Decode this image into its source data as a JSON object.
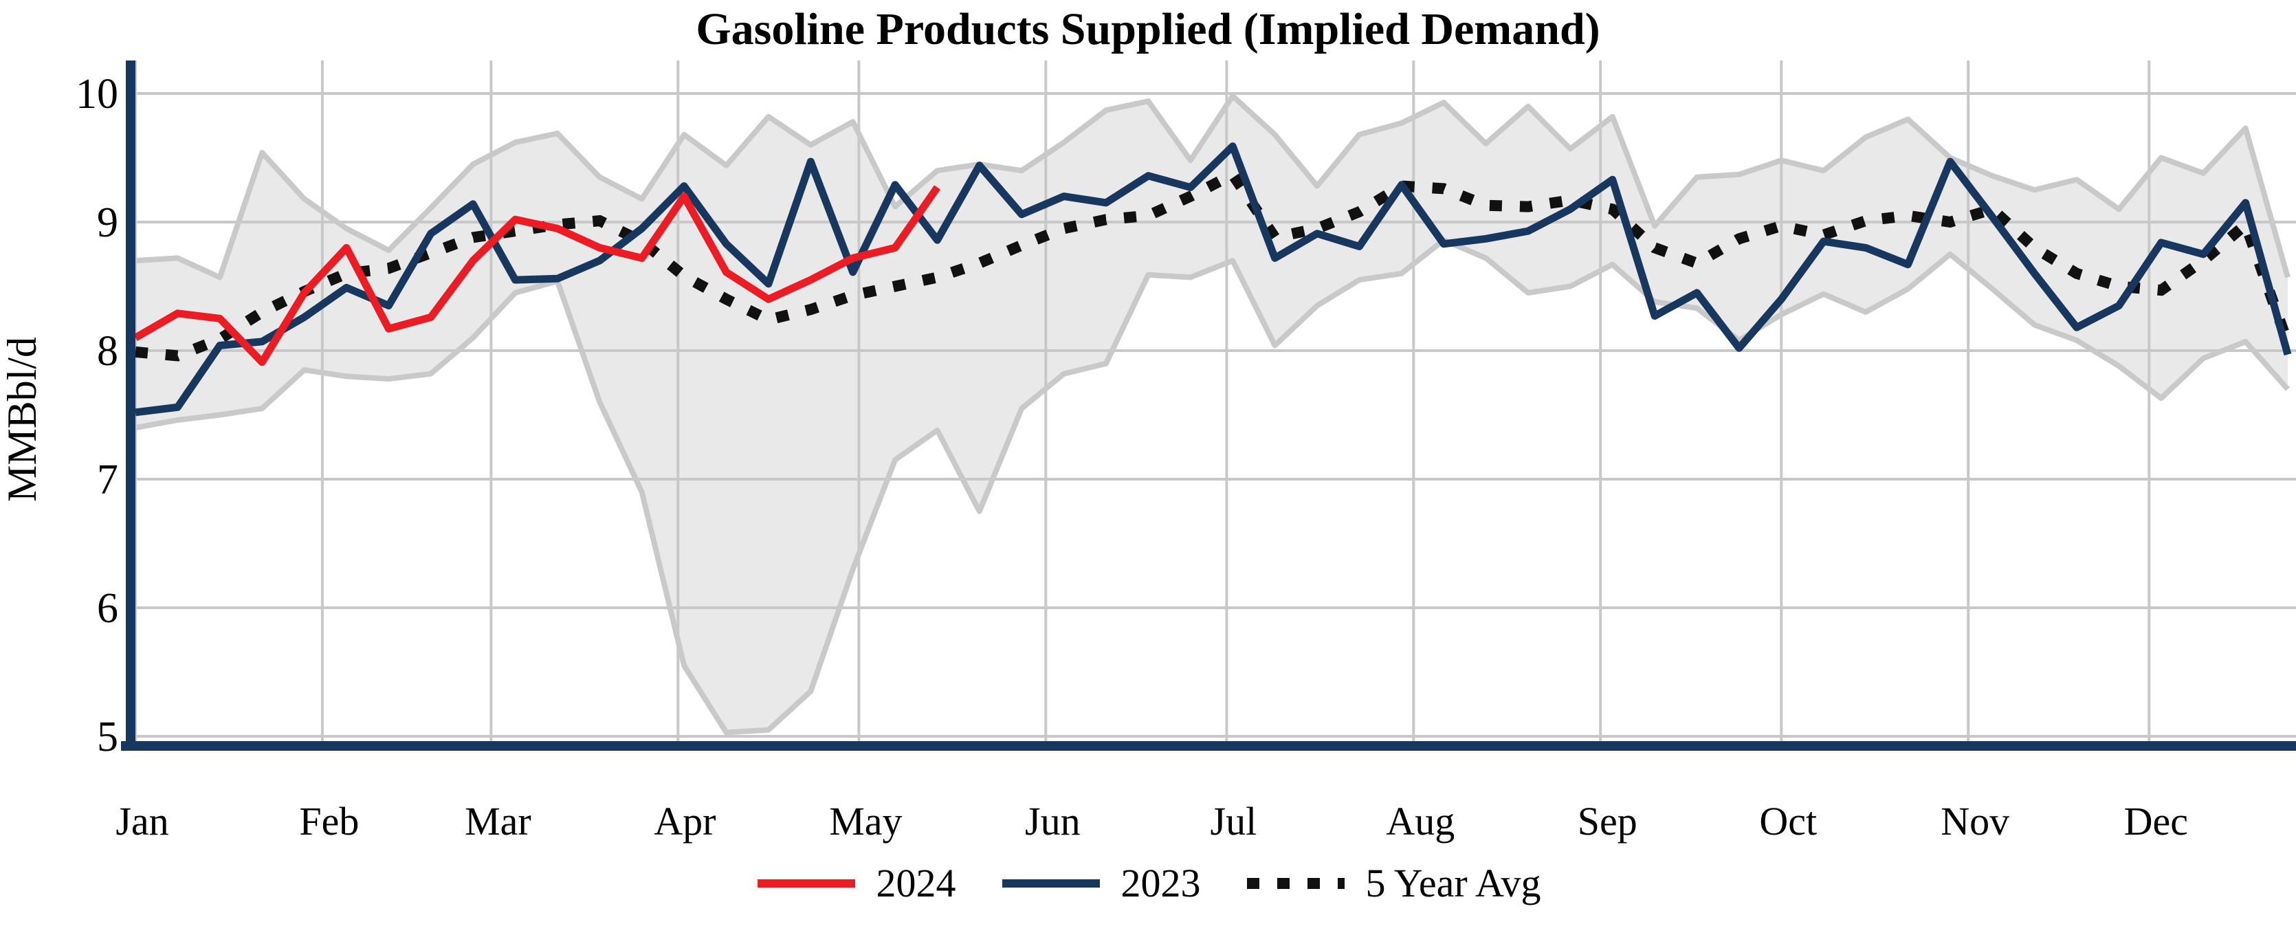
{
  "title": "Gasoline Products Supplied (Implied Demand)",
  "y_axis": {
    "label": "MMBbl/d",
    "ticks": [
      "10",
      "9",
      "8",
      "7",
      "6",
      "5"
    ]
  },
  "x_axis": {
    "months": [
      "Jan",
      "Feb",
      "Mar",
      "Apr",
      "May",
      "Jun",
      "Jul",
      "Aug",
      "Sep",
      "Oct",
      "Nov",
      "Dec"
    ]
  },
  "legend": {
    "items": [
      {
        "label": "2024",
        "color": "#EC1C24",
        "dash": "solid"
      },
      {
        "label": "2023",
        "color": "#17375E",
        "dash": "solid"
      },
      {
        "label": "5 Year Avg",
        "color": "#111111",
        "dash": "dotted"
      }
    ]
  },
  "colors": {
    "red_2024": "#EC1C24",
    "navy_2023": "#17375E",
    "five_yr_avg": "#111111",
    "band_fill": "#E9E9E9",
    "band_edge": "#C9C9C9",
    "gridline": "#C8C8C8",
    "axis_spine": "#17375E",
    "text": "#000000"
  },
  "chart_data": {
    "type": "line",
    "title": "Gasoline Products Supplied (Implied Demand)",
    "xlabel": "",
    "ylabel": "MMBbl/d",
    "x_unit": "week of year",
    "weeks": 52,
    "ylim": [
      5,
      10
    ],
    "y_ticks": [
      10,
      9,
      8,
      7,
      6,
      5
    ],
    "x_tick_labels": [
      "Jan",
      "Feb",
      "Mar",
      "Apr",
      "May",
      "Jun",
      "Jul",
      "Aug",
      "Sep",
      "Oct",
      "Nov",
      "Dec"
    ],
    "grid": true,
    "legend_position": "bottom-center",
    "series": [
      {
        "name": "2024",
        "color": "#EC1C24",
        "style": "solid",
        "values": [
          8.1,
          8.29,
          8.25,
          7.91,
          8.45,
          8.8,
          8.17,
          8.26,
          8.7,
          9.02,
          8.95,
          8.8,
          8.72,
          9.2,
          8.61,
          8.4,
          8.55,
          8.72,
          8.8,
          9.27
        ]
      },
      {
        "name": "2023",
        "color": "#17375E",
        "style": "solid",
        "values": [
          7.52,
          7.56,
          8.04,
          8.07,
          8.26,
          8.49,
          8.35,
          8.91,
          9.14,
          8.55,
          8.56,
          8.7,
          8.95,
          9.28,
          8.83,
          8.52,
          9.47,
          8.61,
          9.29,
          8.86,
          9.44,
          9.06,
          9.2,
          9.15,
          9.36,
          9.27,
          9.59,
          8.72,
          8.91,
          8.81,
          9.29,
          8.83,
          8.87,
          8.93,
          9.1,
          9.33,
          8.27,
          8.45,
          8.02,
          8.4,
          8.85,
          8.8,
          8.67,
          9.47,
          9.04,
          8.6,
          8.18,
          8.35,
          8.84,
          8.75,
          9.15,
          7.97
        ]
      },
      {
        "name": "5 Year Avg",
        "color": "#111111",
        "style": "dotted",
        "values": [
          7.99,
          7.96,
          8.09,
          8.3,
          8.46,
          8.6,
          8.64,
          8.76,
          8.88,
          8.93,
          8.98,
          9.01,
          8.85,
          8.58,
          8.4,
          8.24,
          8.32,
          8.43,
          8.5,
          8.57,
          8.68,
          8.82,
          8.95,
          9.02,
          9.05,
          9.2,
          9.37,
          8.88,
          8.95,
          9.08,
          9.28,
          9.26,
          9.13,
          9.12,
          9.17,
          9.1,
          8.8,
          8.68,
          8.87,
          8.97,
          8.9,
          9.01,
          9.05,
          9.0,
          9.1,
          8.8,
          8.6,
          8.5,
          8.47,
          8.7,
          8.98,
          8.06
        ]
      }
    ],
    "band": {
      "name": "5 Year Range",
      "fill": "#E9E9E9",
      "edge": "#C9C9C9",
      "upper": [
        8.7,
        8.72,
        8.57,
        9.54,
        9.18,
        8.95,
        8.78,
        9.11,
        9.45,
        9.62,
        9.69,
        9.35,
        9.18,
        9.68,
        9.44,
        9.82,
        9.6,
        9.78,
        9.12,
        9.4,
        9.45,
        9.4,
        9.62,
        9.87,
        9.94,
        9.48,
        9.98,
        9.68,
        9.28,
        9.68,
        9.77,
        9.93,
        9.61,
        9.9,
        9.57,
        9.82,
        8.97,
        9.35,
        9.37,
        9.48,
        9.4,
        9.66,
        9.8,
        9.5,
        9.36,
        9.25,
        9.33,
        9.1,
        9.5,
        9.38,
        9.73,
        8.57
      ],
      "lower": [
        7.4,
        7.46,
        7.5,
        7.55,
        7.85,
        7.8,
        7.78,
        7.82,
        8.1,
        8.45,
        8.54,
        7.6,
        6.9,
        5.55,
        5.03,
        5.05,
        5.35,
        6.3,
        7.15,
        7.38,
        6.75,
        7.55,
        7.82,
        7.9,
        8.59,
        8.57,
        8.7,
        8.04,
        8.35,
        8.55,
        8.6,
        8.86,
        8.72,
        8.45,
        8.5,
        8.67,
        8.38,
        8.33,
        8.08,
        8.28,
        8.44,
        8.3,
        8.48,
        8.75,
        8.48,
        8.2,
        8.08,
        7.88,
        7.63,
        7.94,
        8.07,
        7.7
      ]
    }
  }
}
